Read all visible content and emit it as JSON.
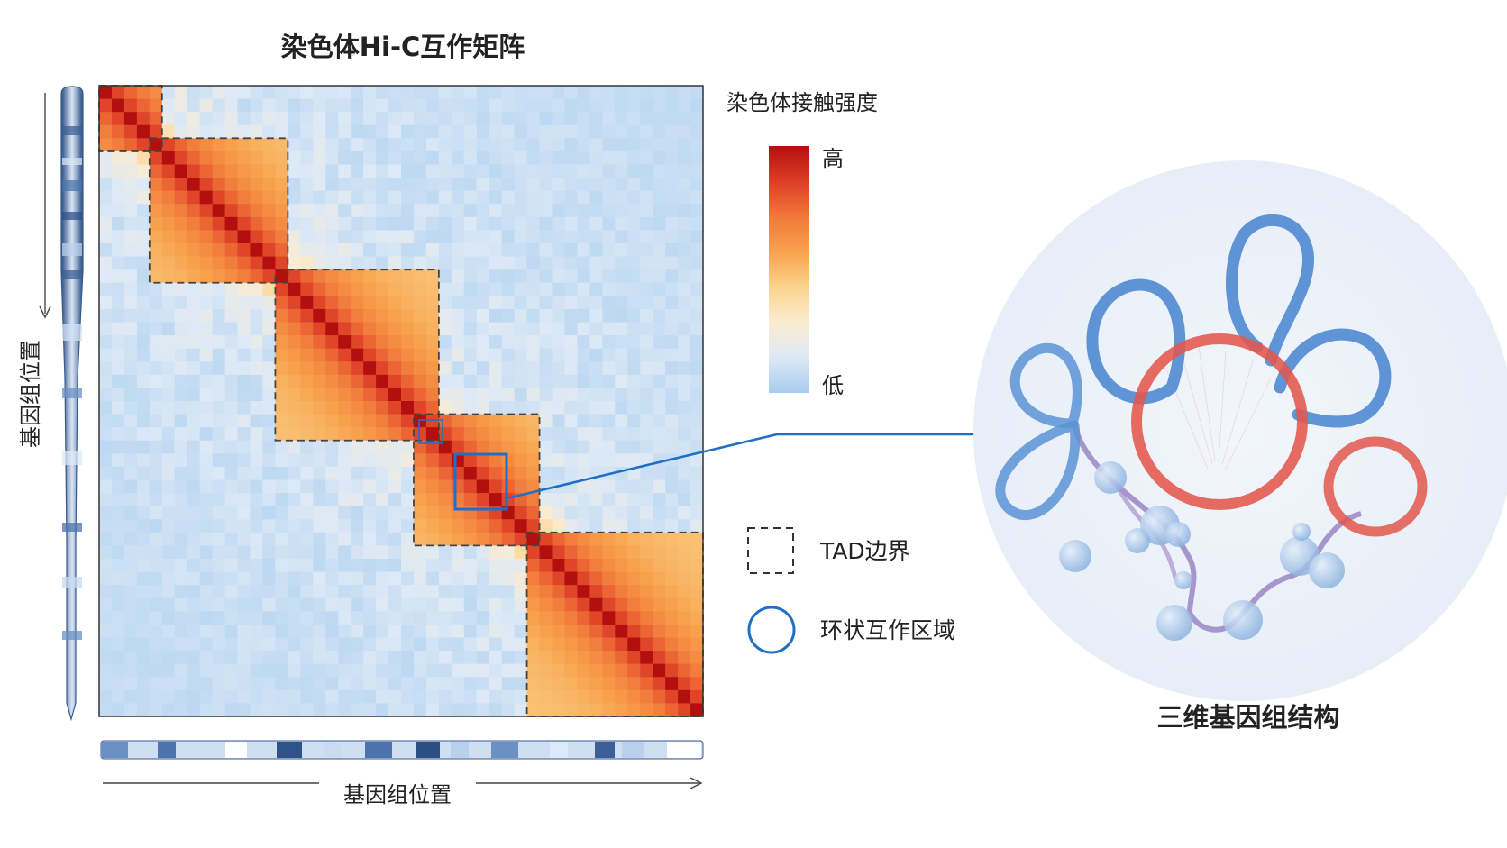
{
  "heatmap": {
    "title": "染色体Hi-C互作矩阵",
    "x_axis_label": "基因组位置",
    "y_axis_label": "基因组位置",
    "grid_size": 48,
    "tad_domains": [
      [
        0,
        5
      ],
      [
        4,
        15
      ],
      [
        14,
        27
      ],
      [
        25,
        35
      ],
      [
        34,
        48
      ]
    ]
  },
  "colorbar": {
    "title": "染色体接触强度",
    "high_label": "高",
    "low_label": "低",
    "colors": [
      "#b40f0f",
      "#dc3e26",
      "#f1783a",
      "#f8a24d",
      "#fbd38d",
      "#fbecd0",
      "#dde9f6",
      "#a6ccef"
    ]
  },
  "legend": {
    "tad_label": "TAD边界",
    "loop_label": "环状互作区域"
  },
  "structure": {
    "title": "三维基因组结构",
    "loop_color_blue": "#5b93d6",
    "loop_color_red": "#e2574c"
  },
  "accent_color": "#1f6fc6"
}
